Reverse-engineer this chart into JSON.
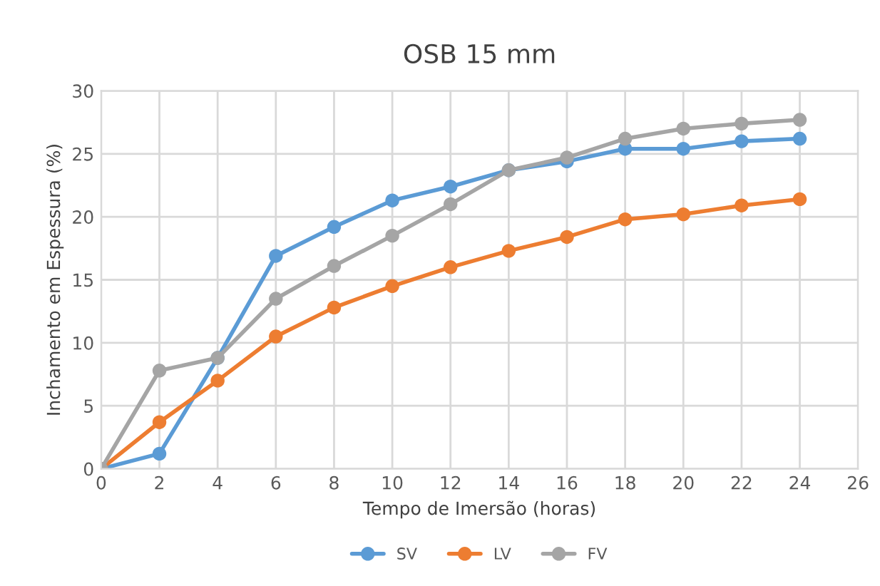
{
  "chart_data": {
    "type": "line",
    "title": "OSB 15 mm",
    "xlabel": "Tempo de Imersão (horas)",
    "ylabel": "Inchamento em Espessura (%)",
    "x": [
      0,
      2,
      4,
      6,
      8,
      10,
      12,
      14,
      16,
      18,
      20,
      22,
      24
    ],
    "series": [
      {
        "name": "SV",
        "color": "#5b9bd5",
        "values": [
          0,
          1.2,
          8.8,
          16.9,
          19.2,
          21.3,
          22.4,
          23.7,
          24.4,
          25.4,
          25.4,
          26.0,
          26.2
        ]
      },
      {
        "name": "LV",
        "color": "#ed7d31",
        "values": [
          0,
          3.7,
          7.0,
          10.5,
          12.8,
          14.5,
          16.0,
          17.3,
          18.4,
          19.8,
          20.2,
          20.9,
          21.4
        ]
      },
      {
        "name": "FV",
        "color": "#a5a5a5",
        "values": [
          0,
          7.8,
          8.8,
          13.5,
          16.1,
          18.5,
          21.0,
          23.7,
          24.7,
          26.2,
          27.0,
          27.4,
          27.7
        ]
      }
    ],
    "xlim": [
      0,
      26
    ],
    "xticks": [
      0,
      2,
      4,
      6,
      8,
      10,
      12,
      14,
      16,
      18,
      20,
      22,
      24,
      26
    ],
    "ylim": [
      0,
      30
    ],
    "yticks": [
      0,
      5,
      10,
      15,
      20,
      25,
      30
    ],
    "grid": true,
    "legend": "bottom",
    "marker": "circle",
    "line_style": "solid"
  }
}
